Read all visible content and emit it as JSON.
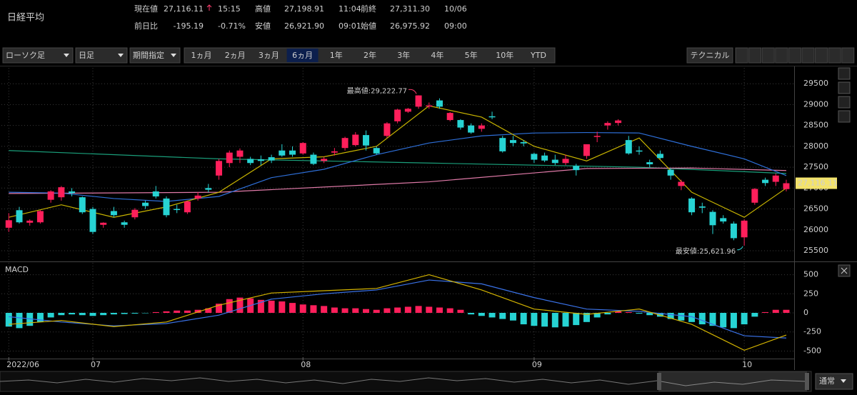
{
  "header": {
    "title": "日経平均",
    "quotes": [
      {
        "label": "現在値",
        "value": "27,116.11",
        "extra": "15:15",
        "color": "#2ed3a4"
      },
      {
        "label": "高値",
        "value": "27,198.91",
        "extra": "11:04",
        "color": "#c8c8c8"
      },
      {
        "label": "前終",
        "value": "27,311.30",
        "extra": "10/06",
        "color": "#c8c8c8"
      },
      {
        "label": "前日比",
        "value": "-195.19",
        "extra": "-0.71%",
        "color": "#2ed3a4"
      },
      {
        "label": "安値",
        "value": "26,921.90",
        "extra": "09:01",
        "color": "#c8c8c8"
      },
      {
        "label": "始値",
        "value": "26,975.92",
        "extra": "09:00",
        "color": "#c8c8c8"
      }
    ]
  },
  "toolbar": {
    "dropdowns": [
      "ローソク足",
      "日足",
      "期間指定"
    ],
    "ranges": [
      "1ヵ月",
      "2ヵ月",
      "3ヵ月",
      "6ヵ月",
      "1年",
      "2年",
      "3年",
      "4年",
      "5年",
      "10年",
      "YTD"
    ],
    "active_range": 3,
    "technical": "テクニカル",
    "mode": "通常"
  },
  "chart_data": [
    {
      "type": "candlestick",
      "up_color": "#ff1f5b",
      "down_color": "#27d3d3",
      "open": [
        26050,
        26470,
        26170,
        26180,
        26720,
        26780,
        26920,
        26780,
        26500,
        26120,
        26450,
        26180,
        26300,
        26650,
        26920,
        26750,
        26500,
        26420,
        26750,
        27000,
        27300,
        27600,
        27750,
        27700,
        27690,
        27740,
        27900,
        27900,
        27830,
        27800,
        27650,
        27850,
        27960,
        28030,
        28270,
        27960,
        28250,
        28600,
        28830,
        28950,
        28970,
        29100,
        28630,
        28630,
        28500,
        28420,
        28720,
        28200,
        28150,
        28100,
        27820,
        27780,
        27680,
        27600,
        27530,
        27770,
        28230,
        28500,
        28560,
        28150,
        27900,
        27620,
        27820,
        27440,
        27050,
        26750,
        26560,
        26430,
        26280,
        26150,
        25820,
        26650,
        27200,
        27150,
        26975.92
      ],
      "high": [
        26400,
        26550,
        26250,
        26470,
        26950,
        27050,
        27000,
        26800,
        26550,
        26180,
        26550,
        26220,
        26520,
        26700,
        27050,
        26800,
        26600,
        26700,
        26900,
        27100,
        27700,
        27900,
        27950,
        27750,
        27780,
        27800,
        28050,
        28000,
        28100,
        27850,
        27750,
        27960,
        28230,
        28340,
        28380,
        28000,
        28580,
        28900,
        28920,
        29222.77,
        29050,
        29150,
        28820,
        28650,
        28550,
        28550,
        28830,
        28250,
        28250,
        28150,
        27850,
        27850,
        27800,
        27800,
        27580,
        28050,
        28350,
        28600,
        28650,
        28250,
        28000,
        27680,
        27900,
        27480,
        27200,
        26780,
        26650,
        26470,
        26350,
        26200,
        26250,
        27000,
        27250,
        27350,
        27198.91
      ],
      "low": [
        25950,
        26150,
        26100,
        26150,
        26650,
        26700,
        26800,
        26380,
        25900,
        26050,
        26300,
        26050,
        26250,
        26500,
        26750,
        26300,
        26400,
        26380,
        26700,
        26900,
        27200,
        27500,
        27600,
        27550,
        27550,
        27600,
        27750,
        27750,
        27800,
        27550,
        27600,
        27780,
        27900,
        28000,
        27900,
        27800,
        28200,
        28550,
        28800,
        28900,
        28900,
        28900,
        28600,
        28400,
        28300,
        28350,
        28650,
        27850,
        28000,
        28000,
        27600,
        27620,
        27550,
        27550,
        27300,
        27700,
        28100,
        28400,
        28500,
        27800,
        27800,
        27500,
        27700,
        27200,
        26950,
        26350,
        26400,
        25900,
        26150,
        25750,
        25621.96,
        26600,
        27050,
        27050,
        26921.9
      ],
      "close": [
        26230,
        26180,
        26220,
        26450,
        26920,
        27020,
        26880,
        26420,
        25950,
        26170,
        26350,
        26120,
        26480,
        26570,
        26800,
        26350,
        26480,
        26680,
        26820,
        26960,
        27650,
        27850,
        27900,
        27600,
        27650,
        27660,
        27780,
        27800,
        28080,
        27580,
        27700,
        27880,
        28200,
        28280,
        28020,
        27830,
        28550,
        28880,
        28900,
        29220,
        28980,
        28950,
        28800,
        28450,
        28330,
        28500,
        28700,
        27880,
        28080,
        28070,
        27680,
        27660,
        27600,
        27700,
        27430,
        28050,
        28250,
        28560,
        28620,
        27830,
        27880,
        27570,
        27720,
        27300,
        27150,
        26420,
        26530,
        26110,
        26200,
        25800,
        26220,
        26980,
        27120,
        27300,
        27116.11
      ],
      "lines": [
        {
          "color": "#1a9e7a",
          "x": [
            0,
            20,
            40,
            60,
            74
          ],
          "values": [
            27900,
            27700,
            27600,
            27500,
            27350
          ]
        },
        {
          "color": "#e07aa8",
          "x": [
            0,
            20,
            40,
            55,
            65,
            74
          ],
          "values": [
            26870,
            26900,
            27150,
            27470,
            27480,
            27420
          ]
        },
        {
          "color": "#2e6fd8",
          "x": [
            0,
            5,
            10,
            15,
            20,
            25,
            30,
            35,
            40,
            45,
            50,
            55,
            60,
            65,
            70,
            74
          ],
          "values": [
            26900,
            26880,
            26750,
            26680,
            26800,
            27250,
            27450,
            27800,
            28080,
            28250,
            28320,
            28330,
            28320,
            28000,
            27700,
            27300
          ]
        },
        {
          "color": "#c8b400",
          "x": [
            0,
            5,
            10,
            15,
            20,
            25,
            30,
            35,
            40,
            45,
            50,
            55,
            60,
            65,
            70,
            74
          ],
          "values": [
            26300,
            26600,
            26300,
            26550,
            26900,
            27700,
            27750,
            28000,
            28970,
            28700,
            28000,
            27650,
            28200,
            26900,
            26300,
            27000
          ]
        }
      ],
      "high_label": "最高値:29,222.77",
      "high_color": "#ff3d6e",
      "low_label": "最安値:25,621.96",
      "low_color": "#27d3d3",
      "last_label": "27,116.11",
      "last_color": "#f3e36b",
      "xlim": [
        -0.7,
        74.75
      ],
      "xticks": [
        {
          "value": 0,
          "label": "2022/06"
        },
        {
          "value": 8,
          "label": "07"
        },
        {
          "value": 28,
          "label": "08"
        },
        {
          "value": 50,
          "label": "09"
        },
        {
          "value": 70,
          "label": "10"
        }
      ],
      "ylim": [
        25260,
        29880
      ],
      "yticks": [
        25500,
        26000,
        26500,
        27000,
        27500,
        28000,
        28500,
        29000,
        29500
      ],
      "grid": true
    },
    {
      "type": "macd",
      "title": "MACD",
      "up_color": "#ff1f5b",
      "down_color": "#27d3d3",
      "bars": [
        -180,
        -200,
        -170,
        -120,
        -60,
        -30,
        -20,
        -30,
        -40,
        -30,
        -20,
        -15,
        -10,
        -5,
        10,
        20,
        30,
        30,
        40,
        60,
        120,
        180,
        200,
        190,
        170,
        160,
        150,
        130,
        110,
        100,
        90,
        70,
        60,
        60,
        50,
        40,
        60,
        70,
        80,
        90,
        80,
        70,
        60,
        40,
        -20,
        -40,
        -60,
        -80,
        -100,
        -150,
        -170,
        -180,
        -190,
        -180,
        -160,
        -120,
        -60,
        -20,
        20,
        10,
        -10,
        -30,
        -50,
        -80,
        -100,
        -120,
        -150,
        -170,
        -190,
        -200,
        -150,
        -50,
        10,
        40,
        40
      ],
      "series": [
        {
          "color": "#3a72e8",
          "x": [
            0,
            5,
            10,
            15,
            20,
            25,
            30,
            35,
            40,
            45,
            50,
            55,
            60,
            65,
            70,
            74
          ],
          "values": [
            -50,
            -120,
            -170,
            -140,
            -30,
            180,
            250,
            300,
            430,
            380,
            200,
            50,
            20,
            -50,
            -300,
            -330
          ]
        },
        {
          "color": "#d4b400",
          "x": [
            0,
            5,
            10,
            15,
            20,
            25,
            30,
            35,
            40,
            45,
            50,
            55,
            60,
            65,
            70,
            74
          ],
          "values": [
            -150,
            -100,
            -180,
            -120,
            100,
            260,
            290,
            320,
            500,
            300,
            50,
            -20,
            50,
            -150,
            -490,
            -290
          ]
        }
      ],
      "ylim": [
        -580,
        655
      ],
      "yticks": [
        500,
        250,
        0,
        -250,
        -500
      ],
      "grid": true
    }
  ]
}
